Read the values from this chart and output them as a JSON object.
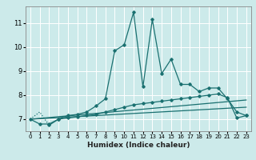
{
  "title": "",
  "xlabel": "Humidex (Indice chaleur)",
  "ylabel": "",
  "bg_color": "#cceaea",
  "line_color": "#1a7070",
  "grid_color": "#ffffff",
  "xlim": [
    -0.5,
    23.5
  ],
  "ylim": [
    6.5,
    11.7
  ],
  "yticks": [
    7,
    8,
    9,
    10,
    11
  ],
  "xticks": [
    0,
    1,
    2,
    3,
    4,
    5,
    6,
    7,
    8,
    9,
    10,
    11,
    12,
    13,
    14,
    15,
    16,
    17,
    18,
    19,
    20,
    21,
    22,
    23
  ],
  "line1_x": [
    0,
    1,
    2,
    3,
    4,
    5,
    6,
    7,
    8,
    9,
    10,
    11,
    12,
    13,
    14,
    15,
    16,
    17,
    18,
    19,
    20,
    21,
    22,
    23
  ],
  "line1_y": [
    7.0,
    7.3,
    6.75,
    7.0,
    7.15,
    7.2,
    7.3,
    7.55,
    7.85,
    9.85,
    10.1,
    11.45,
    8.35,
    11.15,
    8.9,
    9.5,
    8.45,
    8.45,
    8.15,
    8.3,
    8.3,
    7.85,
    7.3,
    7.15
  ],
  "line2_x": [
    0,
    1,
    2,
    3,
    4,
    5,
    6,
    7,
    8,
    9,
    10,
    11,
    12,
    13,
    14,
    15,
    16,
    17,
    18,
    19,
    20,
    21,
    22,
    23
  ],
  "line2_y": [
    7.0,
    6.8,
    6.8,
    7.0,
    7.05,
    7.1,
    7.15,
    7.2,
    7.3,
    7.4,
    7.5,
    7.6,
    7.65,
    7.7,
    7.75,
    7.8,
    7.85,
    7.9,
    7.95,
    8.0,
    8.05,
    7.9,
    7.05,
    7.15
  ],
  "line3_x": [
    0,
    23
  ],
  "line3_y": [
    7.0,
    7.5
  ],
  "line4_x": [
    0,
    23
  ],
  "line4_y": [
    7.0,
    7.8
  ]
}
